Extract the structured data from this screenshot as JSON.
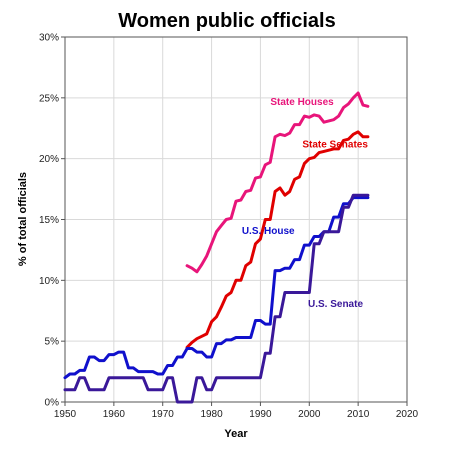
{
  "chart_data": {
    "type": "line",
    "title": "Women public officials",
    "xlabel": "Year",
    "ylabel": "% of total officials",
    "xlim": [
      1950,
      2020
    ],
    "ylim": [
      0,
      30
    ],
    "x_ticks": [
      "1950",
      "1960",
      "1970",
      "1980",
      "1990",
      "2000",
      "2010",
      "2020"
    ],
    "y_ticks": [
      "0%",
      "5%",
      "10%",
      "15%",
      "20%",
      "25%",
      "30%"
    ],
    "grid": true,
    "legend": "none (series labeled directly on plot)",
    "series": [
      {
        "name": "State Houses",
        "color": "#e8157a",
        "points": [
          [
            1975,
            11.2
          ],
          [
            1976,
            11.0
          ],
          [
            1977,
            10.7
          ],
          [
            1978,
            11.3
          ],
          [
            1979,
            12.0
          ],
          [
            1980,
            13.0
          ],
          [
            1981,
            14.0
          ],
          [
            1982,
            14.5
          ],
          [
            1983,
            15.0
          ],
          [
            1984,
            15.1
          ],
          [
            1985,
            16.5
          ],
          [
            1986,
            16.6
          ],
          [
            1987,
            17.3
          ],
          [
            1988,
            17.4
          ],
          [
            1989,
            18.4
          ],
          [
            1990,
            18.5
          ],
          [
            1991,
            19.5
          ],
          [
            1992,
            19.7
          ],
          [
            1993,
            21.8
          ],
          [
            1994,
            22.0
          ],
          [
            1995,
            21.9
          ],
          [
            1996,
            22.1
          ],
          [
            1997,
            22.8
          ],
          [
            1998,
            22.8
          ],
          [
            1999,
            23.5
          ],
          [
            2000,
            23.4
          ],
          [
            2001,
            23.6
          ],
          [
            2002,
            23.5
          ],
          [
            2003,
            23.0
          ],
          [
            2004,
            23.1
          ],
          [
            2005,
            23.2
          ],
          [
            2006,
            23.5
          ],
          [
            2007,
            24.2
          ],
          [
            2008,
            24.5
          ],
          [
            2009,
            25.0
          ],
          [
            2010,
            25.4
          ],
          [
            2011,
            24.4
          ],
          [
            2012,
            24.3
          ]
        ]
      },
      {
        "name": "State Senates",
        "color": "#e00000",
        "points": [
          [
            1975,
            4.5
          ],
          [
            1976,
            4.9
          ],
          [
            1977,
            5.2
          ],
          [
            1978,
            5.4
          ],
          [
            1979,
            5.6
          ],
          [
            1980,
            6.6
          ],
          [
            1981,
            7.0
          ],
          [
            1982,
            7.8
          ],
          [
            1983,
            8.7
          ],
          [
            1984,
            9.0
          ],
          [
            1985,
            10.0
          ],
          [
            1986,
            10.0
          ],
          [
            1987,
            11.2
          ],
          [
            1988,
            11.5
          ],
          [
            1989,
            13.0
          ],
          [
            1990,
            13.4
          ],
          [
            1991,
            15.0
          ],
          [
            1992,
            15.0
          ],
          [
            1993,
            17.3
          ],
          [
            1994,
            17.6
          ],
          [
            1995,
            17.0
          ],
          [
            1996,
            17.3
          ],
          [
            1997,
            18.3
          ],
          [
            1998,
            18.5
          ],
          [
            1999,
            19.6
          ],
          [
            2000,
            20.0
          ],
          [
            2001,
            20.1
          ],
          [
            2002,
            20.5
          ],
          [
            2003,
            20.6
          ],
          [
            2004,
            20.7
          ],
          [
            2005,
            20.8
          ],
          [
            2006,
            20.8
          ],
          [
            2007,
            21.5
          ],
          [
            2008,
            21.6
          ],
          [
            2009,
            22.0
          ],
          [
            2010,
            22.2
          ],
          [
            2011,
            21.8
          ],
          [
            2012,
            21.8
          ]
        ]
      },
      {
        "name": "U.S. House",
        "color": "#1010cc",
        "points": [
          [
            1950,
            2.0
          ],
          [
            1951,
            2.3
          ],
          [
            1952,
            2.3
          ],
          [
            1953,
            2.6
          ],
          [
            1954,
            2.6
          ],
          [
            1955,
            3.7
          ],
          [
            1956,
            3.7
          ],
          [
            1957,
            3.4
          ],
          [
            1958,
            3.4
          ],
          [
            1959,
            3.9
          ],
          [
            1960,
            3.9
          ],
          [
            1961,
            4.1
          ],
          [
            1962,
            4.1
          ],
          [
            1963,
            2.8
          ],
          [
            1964,
            2.8
          ],
          [
            1965,
            2.5
          ],
          [
            1966,
            2.5
          ],
          [
            1967,
            2.5
          ],
          [
            1968,
            2.5
          ],
          [
            1969,
            2.3
          ],
          [
            1970,
            2.3
          ],
          [
            1971,
            3.0
          ],
          [
            1972,
            3.0
          ],
          [
            1973,
            3.7
          ],
          [
            1974,
            3.7
          ],
          [
            1975,
            4.4
          ],
          [
            1976,
            4.4
          ],
          [
            1977,
            4.1
          ],
          [
            1978,
            4.1
          ],
          [
            1979,
            3.7
          ],
          [
            1980,
            3.7
          ],
          [
            1981,
            4.8
          ],
          [
            1982,
            4.8
          ],
          [
            1983,
            5.1
          ],
          [
            1984,
            5.1
          ],
          [
            1985,
            5.3
          ],
          [
            1986,
            5.3
          ],
          [
            1987,
            5.3
          ],
          [
            1988,
            5.3
          ],
          [
            1989,
            6.7
          ],
          [
            1990,
            6.7
          ],
          [
            1991,
            6.4
          ],
          [
            1992,
            6.4
          ],
          [
            1993,
            10.8
          ],
          [
            1994,
            10.8
          ],
          [
            1995,
            11.0
          ],
          [
            1996,
            11.0
          ],
          [
            1997,
            11.7
          ],
          [
            1998,
            11.7
          ],
          [
            1999,
            12.9
          ],
          [
            2000,
            12.9
          ],
          [
            2001,
            13.6
          ],
          [
            2002,
            13.6
          ],
          [
            2003,
            14.0
          ],
          [
            2004,
            14.0
          ],
          [
            2005,
            15.2
          ],
          [
            2006,
            15.2
          ],
          [
            2007,
            16.3
          ],
          [
            2008,
            16.3
          ],
          [
            2009,
            16.8
          ],
          [
            2010,
            16.8
          ],
          [
            2011,
            16.8
          ],
          [
            2012,
            16.8
          ]
        ]
      },
      {
        "name": "U.S. Senate",
        "color": "#3a1899",
        "points": [
          [
            1950,
            1.0
          ],
          [
            1951,
            1.0
          ],
          [
            1952,
            1.0
          ],
          [
            1953,
            2.0
          ],
          [
            1954,
            2.0
          ],
          [
            1955,
            1.0
          ],
          [
            1956,
            1.0
          ],
          [
            1957,
            1.0
          ],
          [
            1958,
            1.0
          ],
          [
            1959,
            2.0
          ],
          [
            1960,
            2.0
          ],
          [
            1961,
            2.0
          ],
          [
            1962,
            2.0
          ],
          [
            1963,
            2.0
          ],
          [
            1964,
            2.0
          ],
          [
            1965,
            2.0
          ],
          [
            1966,
            2.0
          ],
          [
            1967,
            1.0
          ],
          [
            1968,
            1.0
          ],
          [
            1969,
            1.0
          ],
          [
            1970,
            1.0
          ],
          [
            1971,
            2.0
          ],
          [
            1972,
            2.0
          ],
          [
            1973,
            0.0
          ],
          [
            1974,
            0.0
          ],
          [
            1975,
            0.0
          ],
          [
            1976,
            0.0
          ],
          [
            1977,
            2.0
          ],
          [
            1978,
            2.0
          ],
          [
            1979,
            1.0
          ],
          [
            1980,
            1.0
          ],
          [
            1981,
            2.0
          ],
          [
            1982,
            2.0
          ],
          [
            1983,
            2.0
          ],
          [
            1984,
            2.0
          ],
          [
            1985,
            2.0
          ],
          [
            1986,
            2.0
          ],
          [
            1987,
            2.0
          ],
          [
            1988,
            2.0
          ],
          [
            1989,
            2.0
          ],
          [
            1990,
            2.0
          ],
          [
            1991,
            4.0
          ],
          [
            1992,
            4.0
          ],
          [
            1993,
            7.0
          ],
          [
            1994,
            7.0
          ],
          [
            1995,
            9.0
          ],
          [
            1996,
            9.0
          ],
          [
            1997,
            9.0
          ],
          [
            1998,
            9.0
          ],
          [
            1999,
            9.0
          ],
          [
            2000,
            9.0
          ],
          [
            2001,
            13.0
          ],
          [
            2002,
            13.0
          ],
          [
            2003,
            14.0
          ],
          [
            2004,
            14.0
          ],
          [
            2005,
            14.0
          ],
          [
            2006,
            14.0
          ],
          [
            2007,
            16.0
          ],
          [
            2008,
            16.0
          ],
          [
            2009,
            17.0
          ],
          [
            2010,
            17.0
          ],
          [
            2011,
            17.0
          ],
          [
            2012,
            17.0
          ]
        ]
      }
    ]
  }
}
